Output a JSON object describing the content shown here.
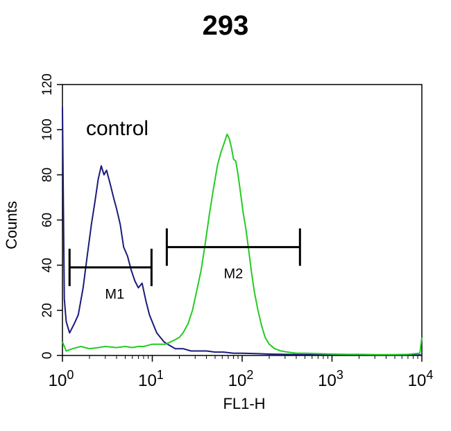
{
  "chart_data": {
    "type": "line",
    "title": "293",
    "xlabel": "FL1-H",
    "ylabel": "Counts",
    "x_scale": "log",
    "xlim": [
      1,
      10000
    ],
    "ylim": [
      0,
      120
    ],
    "x_ticks": [
      {
        "value": 1,
        "base": "10",
        "exp": "0"
      },
      {
        "value": 10,
        "base": "10",
        "exp": "1"
      },
      {
        "value": 100,
        "base": "10",
        "exp": "2"
      },
      {
        "value": 1000,
        "base": "10",
        "exp": "3"
      },
      {
        "value": 10000,
        "base": "10",
        "exp": "4"
      }
    ],
    "y_ticks": [
      "0",
      "20",
      "40",
      "60",
      "80",
      "100",
      "120"
    ],
    "grid": false,
    "annotation": "control",
    "series": [
      {
        "color": "#1a1a7a",
        "x": [
          1.0,
          1.05,
          1.1,
          1.2,
          1.35,
          1.5,
          1.7,
          1.9,
          2.1,
          2.3,
          2.5,
          2.7,
          2.9,
          3.1,
          3.4,
          3.7,
          4.0,
          4.4,
          4.8,
          5.3,
          5.8,
          6.4,
          7.0,
          7.7,
          8.5,
          9.3,
          10.2,
          11.2,
          12.3,
          13.5,
          14.8,
          16.3,
          18,
          22,
          27,
          33,
          40,
          50,
          62,
          80,
          100,
          150,
          200,
          300,
          500,
          1000,
          2000,
          5000,
          10000
        ],
        "y": [
          110,
          25,
          15,
          10,
          14,
          18,
          30,
          45,
          58,
          68,
          78,
          84,
          80,
          82,
          76,
          70,
          65,
          58,
          48,
          44,
          38,
          33,
          30,
          32,
          24,
          18,
          14,
          10,
          8,
          6,
          5,
          4,
          3,
          3,
          2,
          2,
          2,
          1.5,
          1.5,
          1,
          1,
          0.8,
          0.6,
          0.5,
          0.4,
          0.3,
          0.3,
          0.2,
          0.2
        ]
      },
      {
        "color": "#22cc22",
        "x": [
          1.0,
          1.1,
          1.3,
          1.6,
          2,
          2.5,
          3,
          4,
          5,
          6,
          7,
          8,
          9,
          10,
          12,
          14,
          16,
          18,
          20,
          22,
          25,
          28,
          31,
          35,
          39,
          43,
          48,
          53,
          58,
          63,
          68,
          72,
          76,
          80,
          85,
          90,
          96,
          102,
          110,
          118,
          127,
          137,
          150,
          165,
          180,
          200,
          230,
          270,
          320,
          400,
          500,
          700,
          1000,
          1500,
          2000,
          3000,
          5000,
          7000,
          9500,
          10000
        ],
        "y": [
          6,
          2,
          3,
          4,
          3,
          3.5,
          4,
          3.5,
          4,
          3.5,
          4,
          4,
          4.5,
          5,
          5,
          5,
          6,
          7,
          8,
          10,
          14,
          20,
          28,
          38,
          50,
          62,
          74,
          84,
          90,
          94,
          98,
          96,
          92,
          87,
          86,
          80,
          72,
          64,
          56,
          47,
          37,
          28,
          20,
          13,
          8,
          5,
          3,
          2,
          1.5,
          1,
          1,
          0.8,
          0.6,
          0.5,
          0.5,
          0.4,
          0.4,
          0.5,
          1,
          8
        ]
      }
    ],
    "markers": [
      {
        "label": "M1",
        "x1": 1.2,
        "x2": 9.8,
        "y": 39
      },
      {
        "label": "M2",
        "x1": 14.5,
        "x2": 440,
        "y": 48
      }
    ]
  }
}
